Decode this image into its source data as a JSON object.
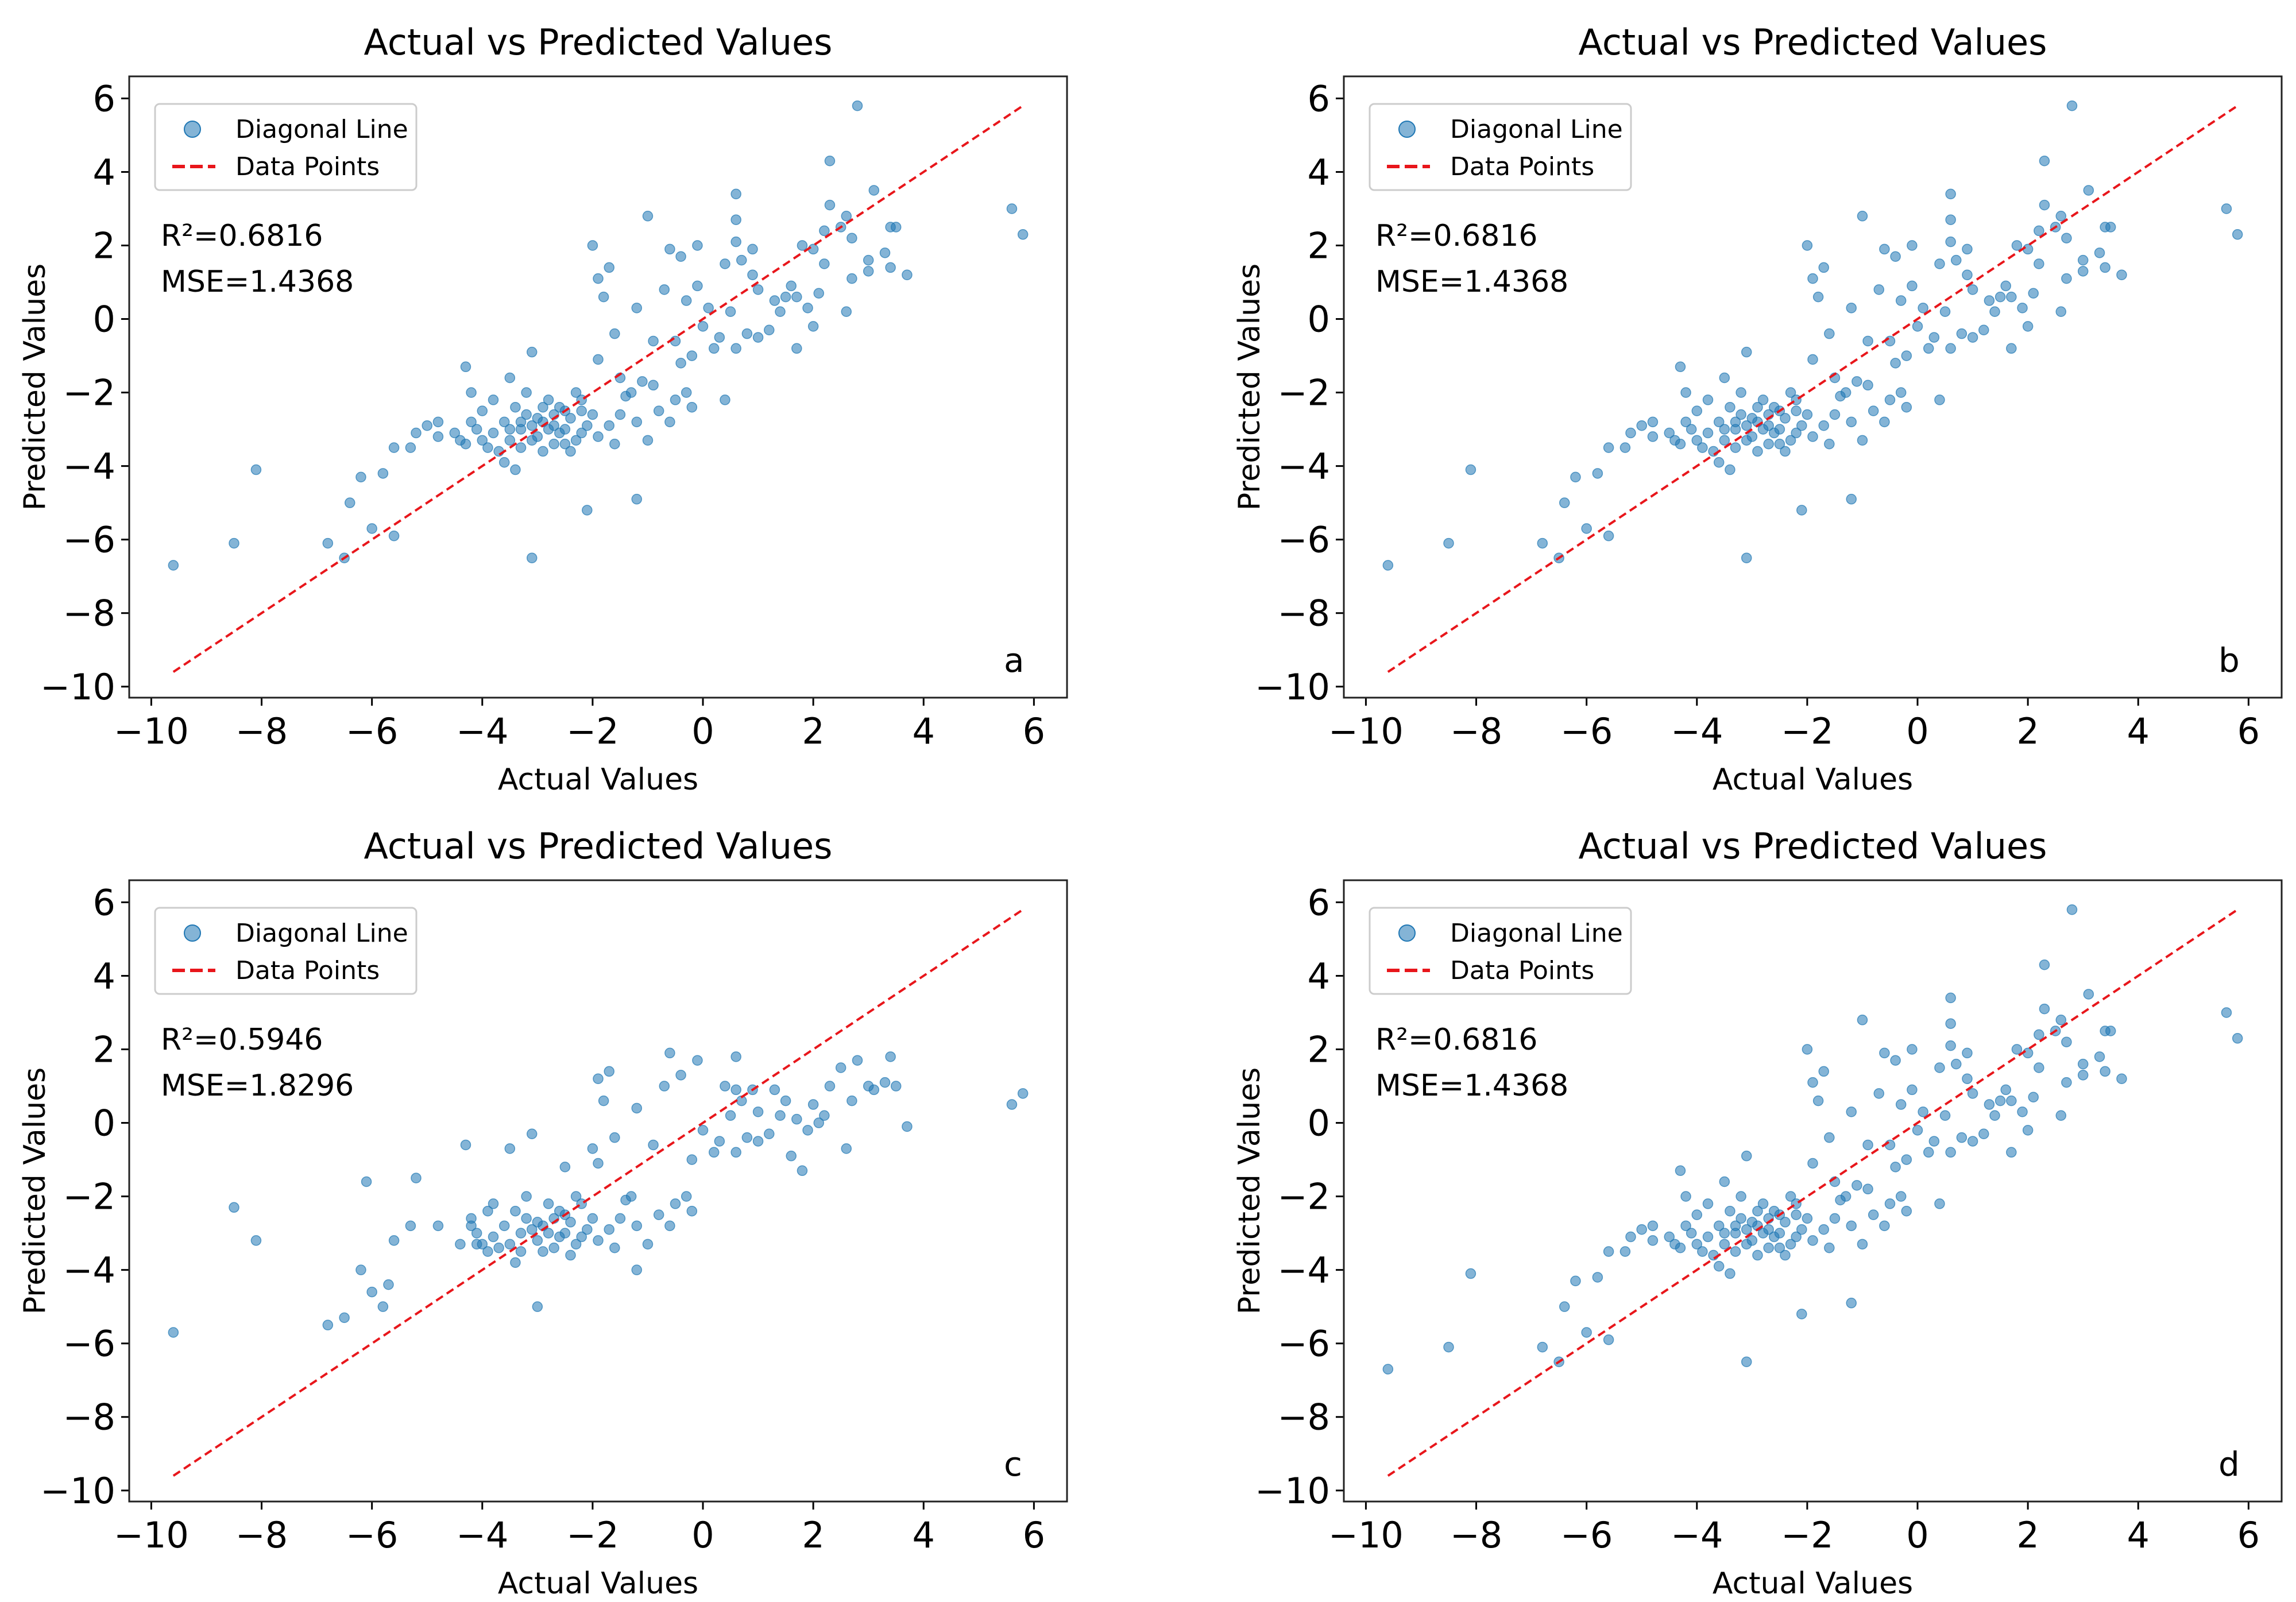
{
  "datasets": {
    "abd": [
      [
        -9.6,
        -6.7
      ],
      [
        -8.5,
        -6.1
      ],
      [
        -8.1,
        -4.1
      ],
      [
        -6.8,
        -6.1
      ],
      [
        -6.5,
        -6.5
      ],
      [
        -6.2,
        -4.3
      ],
      [
        -6.4,
        -5
      ],
      [
        -6,
        -5.7
      ],
      [
        -5.8,
        -4.2
      ],
      [
        -5.6,
        -5.9
      ],
      [
        -5.6,
        -3.5
      ],
      [
        -5.3,
        -3.5
      ],
      [
        -5.2,
        -3.1
      ],
      [
        -5,
        -2.9
      ],
      [
        -4.8,
        -2.8
      ],
      [
        -4.8,
        -3.2
      ],
      [
        -4.5,
        -3.1
      ],
      [
        -4.3,
        -3.4
      ],
      [
        -4.3,
        -1.3
      ],
      [
        -4.2,
        -2
      ],
      [
        -4,
        -2.5
      ],
      [
        -3.5,
        -1.6
      ],
      [
        -3.1,
        -0.9
      ],
      [
        -3.1,
        -6.5
      ],
      [
        -3.4,
        -4.1
      ],
      [
        -2.1,
        -5.2
      ],
      [
        -1.2,
        -4.9
      ],
      [
        -1,
        2.8
      ],
      [
        -2,
        2
      ],
      [
        -1.9,
        1.1
      ],
      [
        -1.7,
        1.4
      ],
      [
        -1.8,
        0.6
      ],
      [
        -1.2,
        0.3
      ],
      [
        -0.7,
        0.8
      ],
      [
        -0.6,
        1.9
      ],
      [
        -0.4,
        1.7
      ],
      [
        -0.1,
        2
      ],
      [
        0.4,
        1.5
      ],
      [
        0.6,
        3.4
      ],
      [
        0.6,
        2.7
      ],
      [
        0.6,
        2.1
      ],
      [
        0.7,
        1.6
      ],
      [
        0.9,
        1.9
      ],
      [
        0.9,
        1.2
      ],
      [
        1,
        0.8
      ],
      [
        1.2,
        -0.3
      ],
      [
        1.5,
        0.6
      ],
      [
        1.6,
        0.9
      ],
      [
        1.7,
        -0.8
      ],
      [
        1.8,
        2
      ],
      [
        2,
        1.9
      ],
      [
        2.1,
        0.7
      ],
      [
        2.2,
        2.4
      ],
      [
        2.3,
        4.3
      ],
      [
        2.3,
        3.1
      ],
      [
        2.6,
        2.8
      ],
      [
        2.7,
        2.2
      ],
      [
        2.7,
        1.1
      ],
      [
        2.6,
        0.2
      ],
      [
        2.8,
        5.8
      ],
      [
        3,
        1.6
      ],
      [
        3.1,
        3.5
      ],
      [
        3.3,
        1.8
      ],
      [
        3.4,
        2.5
      ],
      [
        3.5,
        2.5
      ],
      [
        3.7,
        1.2
      ],
      [
        3.4,
        1.4
      ],
      [
        5.6,
        3
      ],
      [
        5.8,
        2.3
      ],
      [
        0,
        -0.2
      ],
      [
        0.3,
        -0.5
      ],
      [
        -0.2,
        -1
      ],
      [
        -0.3,
        -2
      ],
      [
        -0.5,
        -2.2
      ],
      [
        -0.8,
        -2.5
      ],
      [
        0.4,
        -2.2
      ],
      [
        -1.3,
        -2
      ],
      [
        -1.5,
        -2.6
      ],
      [
        -1,
        -3.3
      ],
      [
        -1.7,
        -2.9
      ],
      [
        -1.6,
        -3.4
      ],
      [
        -0.5,
        -0.6
      ],
      [
        0.1,
        0.3
      ],
      [
        -0.9,
        -0.6
      ],
      [
        -1.6,
        -0.4
      ],
      [
        -1.9,
        -1.1
      ],
      [
        1.4,
        0.2
      ],
      [
        1.9,
        0.3
      ],
      [
        2,
        -0.2
      ],
      [
        0.8,
        -0.4
      ],
      [
        1.3,
        0.5
      ],
      [
        -0.3,
        0.5
      ],
      [
        -3.8,
        -3.1
      ],
      [
        -3.6,
        -2.8
      ],
      [
        -3.3,
        -3
      ],
      [
        -3.2,
        -2.6
      ],
      [
        -3,
        -3.2
      ],
      [
        -2.9,
        -2.8
      ],
      [
        -2.7,
        -3.4
      ],
      [
        -2.6,
        -2.4
      ],
      [
        -2.5,
        -3
      ],
      [
        -2.4,
        -2.7
      ],
      [
        -2.3,
        -3.3
      ],
      [
        -2.2,
        -2.2
      ],
      [
        -2.1,
        -2.9
      ],
      [
        -3.9,
        -3.5
      ],
      [
        -3.7,
        -3.6
      ],
      [
        -3.5,
        -3.3
      ],
      [
        -3.4,
        -2.4
      ],
      [
        -3.1,
        -2.9
      ],
      [
        -2.9,
        -3.6
      ],
      [
        -2.8,
        -2.2
      ],
      [
        -2.6,
        -3.1
      ],
      [
        -2.5,
        -2.5
      ],
      [
        -2.3,
        -2
      ],
      [
        -2,
        -2.6
      ],
      [
        -1.9,
        -3.2
      ],
      [
        -4.1,
        -3
      ],
      [
        -4,
        -3.3
      ],
      [
        -3.8,
        -2.2
      ],
      [
        -3.6,
        -3.9
      ],
      [
        -3.3,
        -3.5
      ],
      [
        -3.2,
        -2
      ],
      [
        -3,
        -2.7
      ],
      [
        -2.8,
        -3
      ],
      [
        -2.7,
        -2.6
      ],
      [
        -2.4,
        -3.6
      ],
      [
        -2.2,
        -3.1
      ],
      [
        -3.5,
        -3
      ],
      [
        -3.3,
        -2.8
      ],
      [
        -3.1,
        -3.3
      ],
      [
        -2.9,
        -2.4
      ],
      [
        -2.7,
        -2.9
      ],
      [
        -2.5,
        -3.4
      ],
      [
        -2.2,
        -2.5
      ],
      [
        -4.4,
        -3.3
      ],
      [
        -4.2,
        -2.8
      ],
      [
        -1.4,
        -2.1
      ],
      [
        -1.2,
        -2.8
      ],
      [
        -0.9,
        -1.8
      ],
      [
        -0.6,
        -2.8
      ],
      [
        -0.2,
        -2.4
      ],
      [
        -0.4,
        -1.2
      ],
      [
        0.2,
        -0.8
      ],
      [
        -0.1,
        0.9
      ],
      [
        0.5,
        0.2
      ],
      [
        0.6,
        -0.8
      ],
      [
        1,
        -0.5
      ],
      [
        1.7,
        0.6
      ],
      [
        2.2,
        1.5
      ],
      [
        2.5,
        2.5
      ],
      [
        3,
        1.3
      ],
      [
        -1.5,
        -1.6
      ],
      [
        -1.1,
        -1.7
      ]
    ],
    "c": [
      [
        -9.6,
        -5.7
      ],
      [
        -8.5,
        -2.3
      ],
      [
        -8.1,
        -3.2
      ],
      [
        -6.8,
        -5.5
      ],
      [
        -6.5,
        -5.3
      ],
      [
        -6.2,
        -4
      ],
      [
        -6.1,
        -1.6
      ],
      [
        -6,
        -4.6
      ],
      [
        -5.8,
        -5
      ],
      [
        -5.7,
        -4.4
      ],
      [
        -5.6,
        -3.2
      ],
      [
        -5.3,
        -2.8
      ],
      [
        -5.2,
        -1.5
      ],
      [
        -4.8,
        -2.8
      ],
      [
        -4.3,
        -0.6
      ],
      [
        -4.2,
        -2.6
      ],
      [
        -4.1,
        -3.3
      ],
      [
        -3.9,
        -2.4
      ],
      [
        -3.5,
        -0.7
      ],
      [
        -3.1,
        -0.3
      ],
      [
        -3,
        -5
      ],
      [
        -3.4,
        -3.8
      ],
      [
        -2.5,
        -1.2
      ],
      [
        -2,
        -0.7
      ],
      [
        -1.9,
        1.2
      ],
      [
        -1.7,
        1.4
      ],
      [
        -1.8,
        0.6
      ],
      [
        -1.2,
        0.4
      ],
      [
        -1.2,
        -4
      ],
      [
        -0.7,
        1
      ],
      [
        -0.6,
        1.9
      ],
      [
        -0.4,
        1.3
      ],
      [
        -0.1,
        1.7
      ],
      [
        0.4,
        1
      ],
      [
        0.6,
        1.8
      ],
      [
        0.6,
        0.9
      ],
      [
        0.7,
        0.6
      ],
      [
        0.9,
        0.9
      ],
      [
        1,
        0.3
      ],
      [
        1.2,
        -0.3
      ],
      [
        1.5,
        0.6
      ],
      [
        1.6,
        -0.9
      ],
      [
        1.8,
        -1.3
      ],
      [
        2,
        0.5
      ],
      [
        2.1,
        0
      ],
      [
        2.2,
        0.2
      ],
      [
        2.3,
        1
      ],
      [
        2.5,
        1.5
      ],
      [
        2.6,
        -0.7
      ],
      [
        2.8,
        1.7
      ],
      [
        3,
        1
      ],
      [
        3.1,
        0.9
      ],
      [
        3.3,
        1.1
      ],
      [
        3.4,
        1.8
      ],
      [
        3.5,
        1
      ],
      [
        3.7,
        -0.1
      ],
      [
        5.6,
        0.5
      ],
      [
        5.8,
        0.8
      ],
      [
        0,
        -0.2
      ],
      [
        0.3,
        -0.5
      ],
      [
        -0.2,
        -1
      ],
      [
        -0.3,
        -2
      ],
      [
        -0.5,
        -2.2
      ],
      [
        -0.8,
        -2.5
      ],
      [
        -1.3,
        -2
      ],
      [
        -1.5,
        -2.6
      ],
      [
        -1,
        -3.3
      ],
      [
        -1.7,
        -2.9
      ],
      [
        -1.6,
        -3.4
      ],
      [
        -0.9,
        -0.6
      ],
      [
        -1.6,
        -0.4
      ],
      [
        -1.9,
        -1.1
      ],
      [
        1.4,
        0.2
      ],
      [
        1.9,
        -0.2
      ],
      [
        0.8,
        -0.4
      ],
      [
        -3.8,
        -3.1
      ],
      [
        -3.6,
        -2.8
      ],
      [
        -3.3,
        -3
      ],
      [
        -3.2,
        -2.6
      ],
      [
        -3,
        -3.2
      ],
      [
        -2.9,
        -2.8
      ],
      [
        -2.7,
        -3.4
      ],
      [
        -2.6,
        -2.4
      ],
      [
        -2.5,
        -3
      ],
      [
        -2.4,
        -2.7
      ],
      [
        -2.3,
        -3.3
      ],
      [
        -2.2,
        -2.2
      ],
      [
        -2.1,
        -2.9
      ],
      [
        -3.9,
        -3.5
      ],
      [
        -3.7,
        -3.4
      ],
      [
        -3.5,
        -3.3
      ],
      [
        -3.4,
        -2.4
      ],
      [
        -3.1,
        -2.9
      ],
      [
        -2.9,
        -3.5
      ],
      [
        -2.8,
        -2.2
      ],
      [
        -2.6,
        -3.1
      ],
      [
        -2.5,
        -2.5
      ],
      [
        -2.3,
        -2
      ],
      [
        -2,
        -2.6
      ],
      [
        -1.9,
        -3.2
      ],
      [
        -4.1,
        -3
      ],
      [
        -4,
        -3.3
      ],
      [
        -3.8,
        -2.2
      ],
      [
        -3.3,
        -3.5
      ],
      [
        -3.2,
        -2
      ],
      [
        -3,
        -2.7
      ],
      [
        -2.8,
        -3
      ],
      [
        -2.7,
        -2.6
      ],
      [
        -2.4,
        -3.6
      ],
      [
        -2.2,
        -3.1
      ],
      [
        -4.4,
        -3.3
      ],
      [
        -4.2,
        -2.8
      ],
      [
        -1.4,
        -2.1
      ],
      [
        -1.2,
        -2.8
      ],
      [
        -0.6,
        -2.8
      ],
      [
        -0.2,
        -2.4
      ],
      [
        0.2,
        -0.8
      ],
      [
        0.5,
        0.2
      ],
      [
        0.6,
        -0.8
      ],
      [
        1,
        -0.5
      ],
      [
        1.7,
        0.1
      ],
      [
        2.7,
        0.6
      ],
      [
        1.3,
        0.9
      ]
    ]
  },
  "chart_data": [
    {
      "id": "a",
      "type": "scatter",
      "title": "Actual vs Predicted Values",
      "xlabel": "Actual Values",
      "ylabel": "Predicted Values",
      "xlim": [
        -10.4,
        6.6
      ],
      "ylim": [
        -10.3,
        6.6
      ],
      "xticks": [
        "−10",
        "−8",
        "−6",
        "−4",
        "−2",
        "0",
        "2",
        "4",
        "6"
      ],
      "yticks": [
        "6",
        "4",
        "2",
        "0",
        "−2",
        "−4",
        "−6",
        "−8",
        "−10"
      ],
      "legend": {
        "position": "upper-left",
        "entries": [
          "Diagonal Line",
          "Data Points"
        ]
      },
      "stats": [
        "R²=0.6816",
        "MSE=1.4368"
      ],
      "panel_label": "a",
      "dataset": "abd",
      "diagonal": [
        [
          -9.6,
          -9.6
        ],
        [
          5.8,
          5.8
        ]
      ],
      "colors": {
        "points": "#1f77b4",
        "line": "#e8161b"
      }
    },
    {
      "id": "b",
      "type": "scatter",
      "title": "Actual vs Predicted Values",
      "xlabel": "Actual Values",
      "ylabel": "Predicted Values",
      "xlim": [
        -10.4,
        6.6
      ],
      "ylim": [
        -10.3,
        6.6
      ],
      "xticks": [
        "−10",
        "−8",
        "−6",
        "−4",
        "−2",
        "0",
        "2",
        "4",
        "6"
      ],
      "yticks": [
        "6",
        "4",
        "2",
        "0",
        "−2",
        "−4",
        "−6",
        "−8",
        "−10"
      ],
      "legend": {
        "position": "upper-left",
        "entries": [
          "Diagonal Line",
          "Data Points"
        ]
      },
      "stats": [
        "R²=0.6816",
        "MSE=1.4368"
      ],
      "panel_label": "b",
      "dataset": "abd",
      "diagonal": [
        [
          -9.6,
          -9.6
        ],
        [
          5.8,
          5.8
        ]
      ],
      "colors": {
        "points": "#1f77b4",
        "line": "#e8161b"
      }
    },
    {
      "id": "c",
      "type": "scatter",
      "title": "Actual vs Predicted Values",
      "xlabel": "Actual Values",
      "ylabel": "Predicted Values",
      "xlim": [
        -10.4,
        6.6
      ],
      "ylim": [
        -10.3,
        6.6
      ],
      "xticks": [
        "−10",
        "−8",
        "−6",
        "−4",
        "−2",
        "0",
        "2",
        "4",
        "6"
      ],
      "yticks": [
        "6",
        "4",
        "2",
        "0",
        "−2",
        "−4",
        "−6",
        "−8",
        "−10"
      ],
      "legend": {
        "position": "upper-left",
        "entries": [
          "Diagonal Line",
          "Data Points"
        ]
      },
      "stats": [
        "R²=0.5946",
        "MSE=1.8296"
      ],
      "panel_label": "c",
      "dataset": "c",
      "diagonal": [
        [
          -9.6,
          -9.6
        ],
        [
          5.8,
          5.8
        ]
      ],
      "colors": {
        "points": "#1f77b4",
        "line": "#e8161b"
      }
    },
    {
      "id": "d",
      "type": "scatter",
      "title": "Actual vs Predicted Values",
      "xlabel": "Actual Values",
      "ylabel": "Predicted Values",
      "xlim": [
        -10.4,
        6.6
      ],
      "ylim": [
        -10.3,
        6.6
      ],
      "xticks": [
        "−10",
        "−8",
        "−6",
        "−4",
        "−2",
        "0",
        "2",
        "4",
        "6"
      ],
      "yticks": [
        "6",
        "4",
        "2",
        "0",
        "−2",
        "−4",
        "−6",
        "−8",
        "−10"
      ],
      "legend": {
        "position": "upper-left",
        "entries": [
          "Diagonal Line",
          "Data Points"
        ]
      },
      "stats": [
        "R²=0.6816",
        "MSE=1.4368"
      ],
      "panel_label": "d",
      "dataset": "abd",
      "diagonal": [
        [
          -9.6,
          -9.6
        ],
        [
          5.8,
          5.8
        ]
      ],
      "colors": {
        "points": "#1f77b4",
        "line": "#e8161b"
      }
    }
  ]
}
